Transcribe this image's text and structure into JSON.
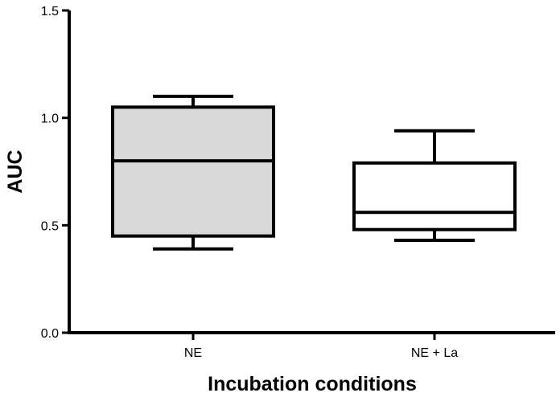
{
  "chart_data": {
    "type": "box",
    "title": "",
    "xlabel": "Incubation conditions",
    "ylabel": "AUC",
    "ylim": [
      0.0,
      1.5
    ],
    "yticks": [
      {
        "value": 0.0,
        "label": "0.0"
      },
      {
        "value": 0.5,
        "label": "0.5"
      },
      {
        "value": 1.0,
        "label": "1.0"
      },
      {
        "value": 1.5,
        "label": "1.5"
      }
    ],
    "grid": false,
    "legend": "none",
    "categories": [
      "NE",
      "NE + La"
    ],
    "boxes": [
      {
        "category": "NE",
        "min": 0.39,
        "q1": 0.45,
        "median": 0.8,
        "q3": 1.05,
        "max": 1.1,
        "fill": "#d9d9d9"
      },
      {
        "category": "NE + La",
        "min": 0.43,
        "q1": 0.48,
        "median": 0.56,
        "q3": 0.79,
        "max": 0.94,
        "fill": "#ffffff"
      }
    ]
  }
}
